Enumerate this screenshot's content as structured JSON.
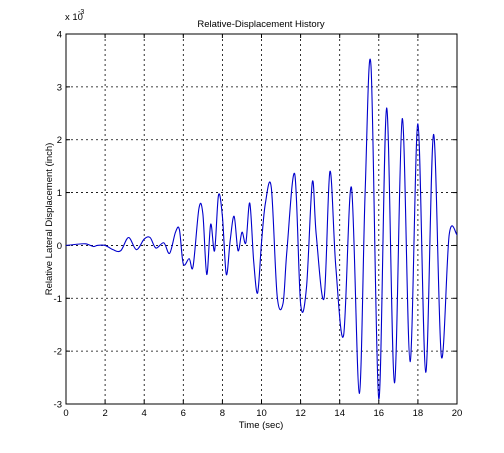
{
  "chart_data": {
    "type": "line",
    "title": "Relative-Displacement History",
    "xlabel": "Time (sec)",
    "ylabel": "Relative Lateral Displacement (inch)",
    "y_multiplier_label": "x 10",
    "y_multiplier_exponent": "-3",
    "xlim": [
      0,
      20
    ],
    "ylim": [
      -3,
      4
    ],
    "x_ticks": [
      0,
      2,
      4,
      6,
      8,
      10,
      12,
      14,
      16,
      18,
      20
    ],
    "y_ticks": [
      -3,
      -2,
      -1,
      0,
      1,
      2,
      3,
      4
    ],
    "grid": true,
    "line_color": "#0000cc",
    "series": [
      {
        "x": [
          0.0,
          0.5,
          1.0,
          1.4,
          1.6,
          2.0,
          2.4,
          2.8,
          3.2,
          3.6,
          4.0,
          4.3,
          4.6,
          5.0,
          5.3,
          5.6,
          5.8,
          6.0,
          6.3,
          6.5,
          6.8,
          7.0,
          7.2,
          7.4,
          7.6,
          7.8,
          8.0,
          8.2,
          8.4,
          8.6,
          8.8,
          9.0,
          9.2,
          9.4,
          9.6,
          9.8,
          10.0,
          10.2,
          10.5,
          10.8,
          11.1,
          11.3,
          11.7,
          12.0,
          12.3,
          12.6,
          12.8,
          13.2,
          13.5,
          13.8,
          14.2,
          14.6,
          15.0,
          15.3,
          15.6,
          16.0,
          16.4,
          16.8,
          17.2,
          17.6,
          18.0,
          18.4,
          18.8,
          19.2,
          19.6,
          20.0
        ],
        "y": [
          0.0,
          0.02,
          0.03,
          -0.02,
          0.0,
          0.0,
          -0.08,
          -0.1,
          0.15,
          -0.08,
          0.12,
          0.15,
          -0.05,
          0.05,
          -0.15,
          0.25,
          0.3,
          -0.35,
          -0.25,
          -0.4,
          0.7,
          0.6,
          -0.55,
          0.4,
          -0.1,
          0.95,
          0.55,
          -0.55,
          0.1,
          0.55,
          -0.1,
          0.25,
          0.05,
          0.8,
          -0.3,
          -0.9,
          0.05,
          0.8,
          1.1,
          -0.95,
          -1.1,
          -0.1,
          1.35,
          -1.1,
          -0.8,
          1.2,
          0.2,
          -1.0,
          1.4,
          -0.4,
          -1.7,
          1.1,
          -2.8,
          1.0,
          3.4,
          -2.9,
          2.6,
          -2.6,
          2.4,
          -2.2,
          2.3,
          -2.4,
          2.1,
          -2.1,
          0.2,
          0.2
        ]
      }
    ]
  }
}
